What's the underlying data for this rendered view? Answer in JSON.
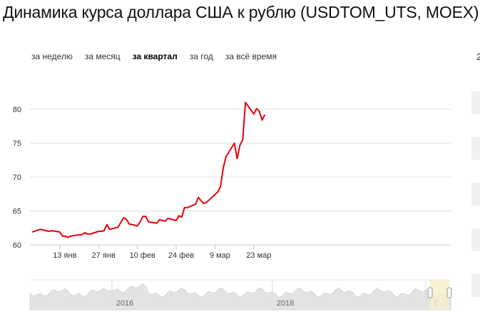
{
  "title": "Динамика курса доллара США к рублю (USDTOM_UTS, MOEX)",
  "tabs": [
    {
      "label": "за неделю",
      "active": false
    },
    {
      "label": "за месяц",
      "active": false
    },
    {
      "label": "за квартал",
      "active": true
    },
    {
      "label": "за год",
      "active": false
    },
    {
      "label": "за всё время",
      "active": false
    }
  ],
  "side_label": "2",
  "colors": {
    "line": "#e8000b",
    "grid": "#e0e0e0",
    "nav_fill": "#e3e3e3",
    "handle": "#f6edc9"
  },
  "chart_data": {
    "type": "line",
    "title": "Динамика курса доллара США к рублю (USDTOM_UTS, MOEX)",
    "xlabel": "",
    "ylabel": "",
    "ylim": [
      60,
      82
    ],
    "y_ticks": [
      60,
      65,
      70,
      75,
      80
    ],
    "x_ticks": [
      "13 янв",
      "27 янв",
      "10 фев",
      "24 фев",
      "9 мар",
      "23 мар"
    ],
    "grid": true,
    "series": [
      {
        "x": [
          "2020-01-03",
          "2020-01-06",
          "2020-01-08",
          "2020-01-09",
          "2020-01-10",
          "2020-01-13",
          "2020-01-14",
          "2020-01-15",
          "2020-01-16",
          "2020-01-17",
          "2020-01-20",
          "2020-01-21",
          "2020-01-22",
          "2020-01-23",
          "2020-01-24",
          "2020-01-27",
          "2020-01-28",
          "2020-01-29",
          "2020-01-30",
          "2020-01-31",
          "2020-02-03",
          "2020-02-04",
          "2020-02-05",
          "2020-02-06",
          "2020-02-07",
          "2020-02-10",
          "2020-02-11",
          "2020-02-12",
          "2020-02-13",
          "2020-02-14",
          "2020-02-17",
          "2020-02-18",
          "2020-02-19",
          "2020-02-20",
          "2020-02-21",
          "2020-02-24",
          "2020-02-25",
          "2020-02-26",
          "2020-02-27",
          "2020-02-28",
          "2020-03-02",
          "2020-03-03",
          "2020-03-04",
          "2020-03-05",
          "2020-03-06",
          "2020-03-10",
          "2020-03-11",
          "2020-03-12",
          "2020-03-13",
          "2020-03-16",
          "2020-03-17",
          "2020-03-18",
          "2020-03-19",
          "2020-03-20",
          "2020-03-23",
          "2020-03-24",
          "2020-03-25",
          "2020-03-26",
          "2020-03-27"
        ],
        "values": [
          61.9,
          62.3,
          62.1,
          62.0,
          62.1,
          61.9,
          61.3,
          61.3,
          61.1,
          61.3,
          61.5,
          61.5,
          61.8,
          61.6,
          61.6,
          62.0,
          62.0,
          62.1,
          63.0,
          62.3,
          62.6,
          63.3,
          64.0,
          63.8,
          63.1,
          62.8,
          63.4,
          64.2,
          64.2,
          63.4,
          63.2,
          63.7,
          63.6,
          63.5,
          63.9,
          63.6,
          64.3,
          64.1,
          65.5,
          65.5,
          66.0,
          67.0,
          66.5,
          66.1,
          66.3,
          67.8,
          68.6,
          71.4,
          73.0,
          75.0,
          72.7,
          74.7,
          75.5,
          81.0,
          79.3,
          80.1,
          79.7,
          78.4,
          79.2
        ]
      }
    ]
  },
  "navigator": {
    "years": [
      "2016",
      "2018",
      "2..."
    ]
  }
}
